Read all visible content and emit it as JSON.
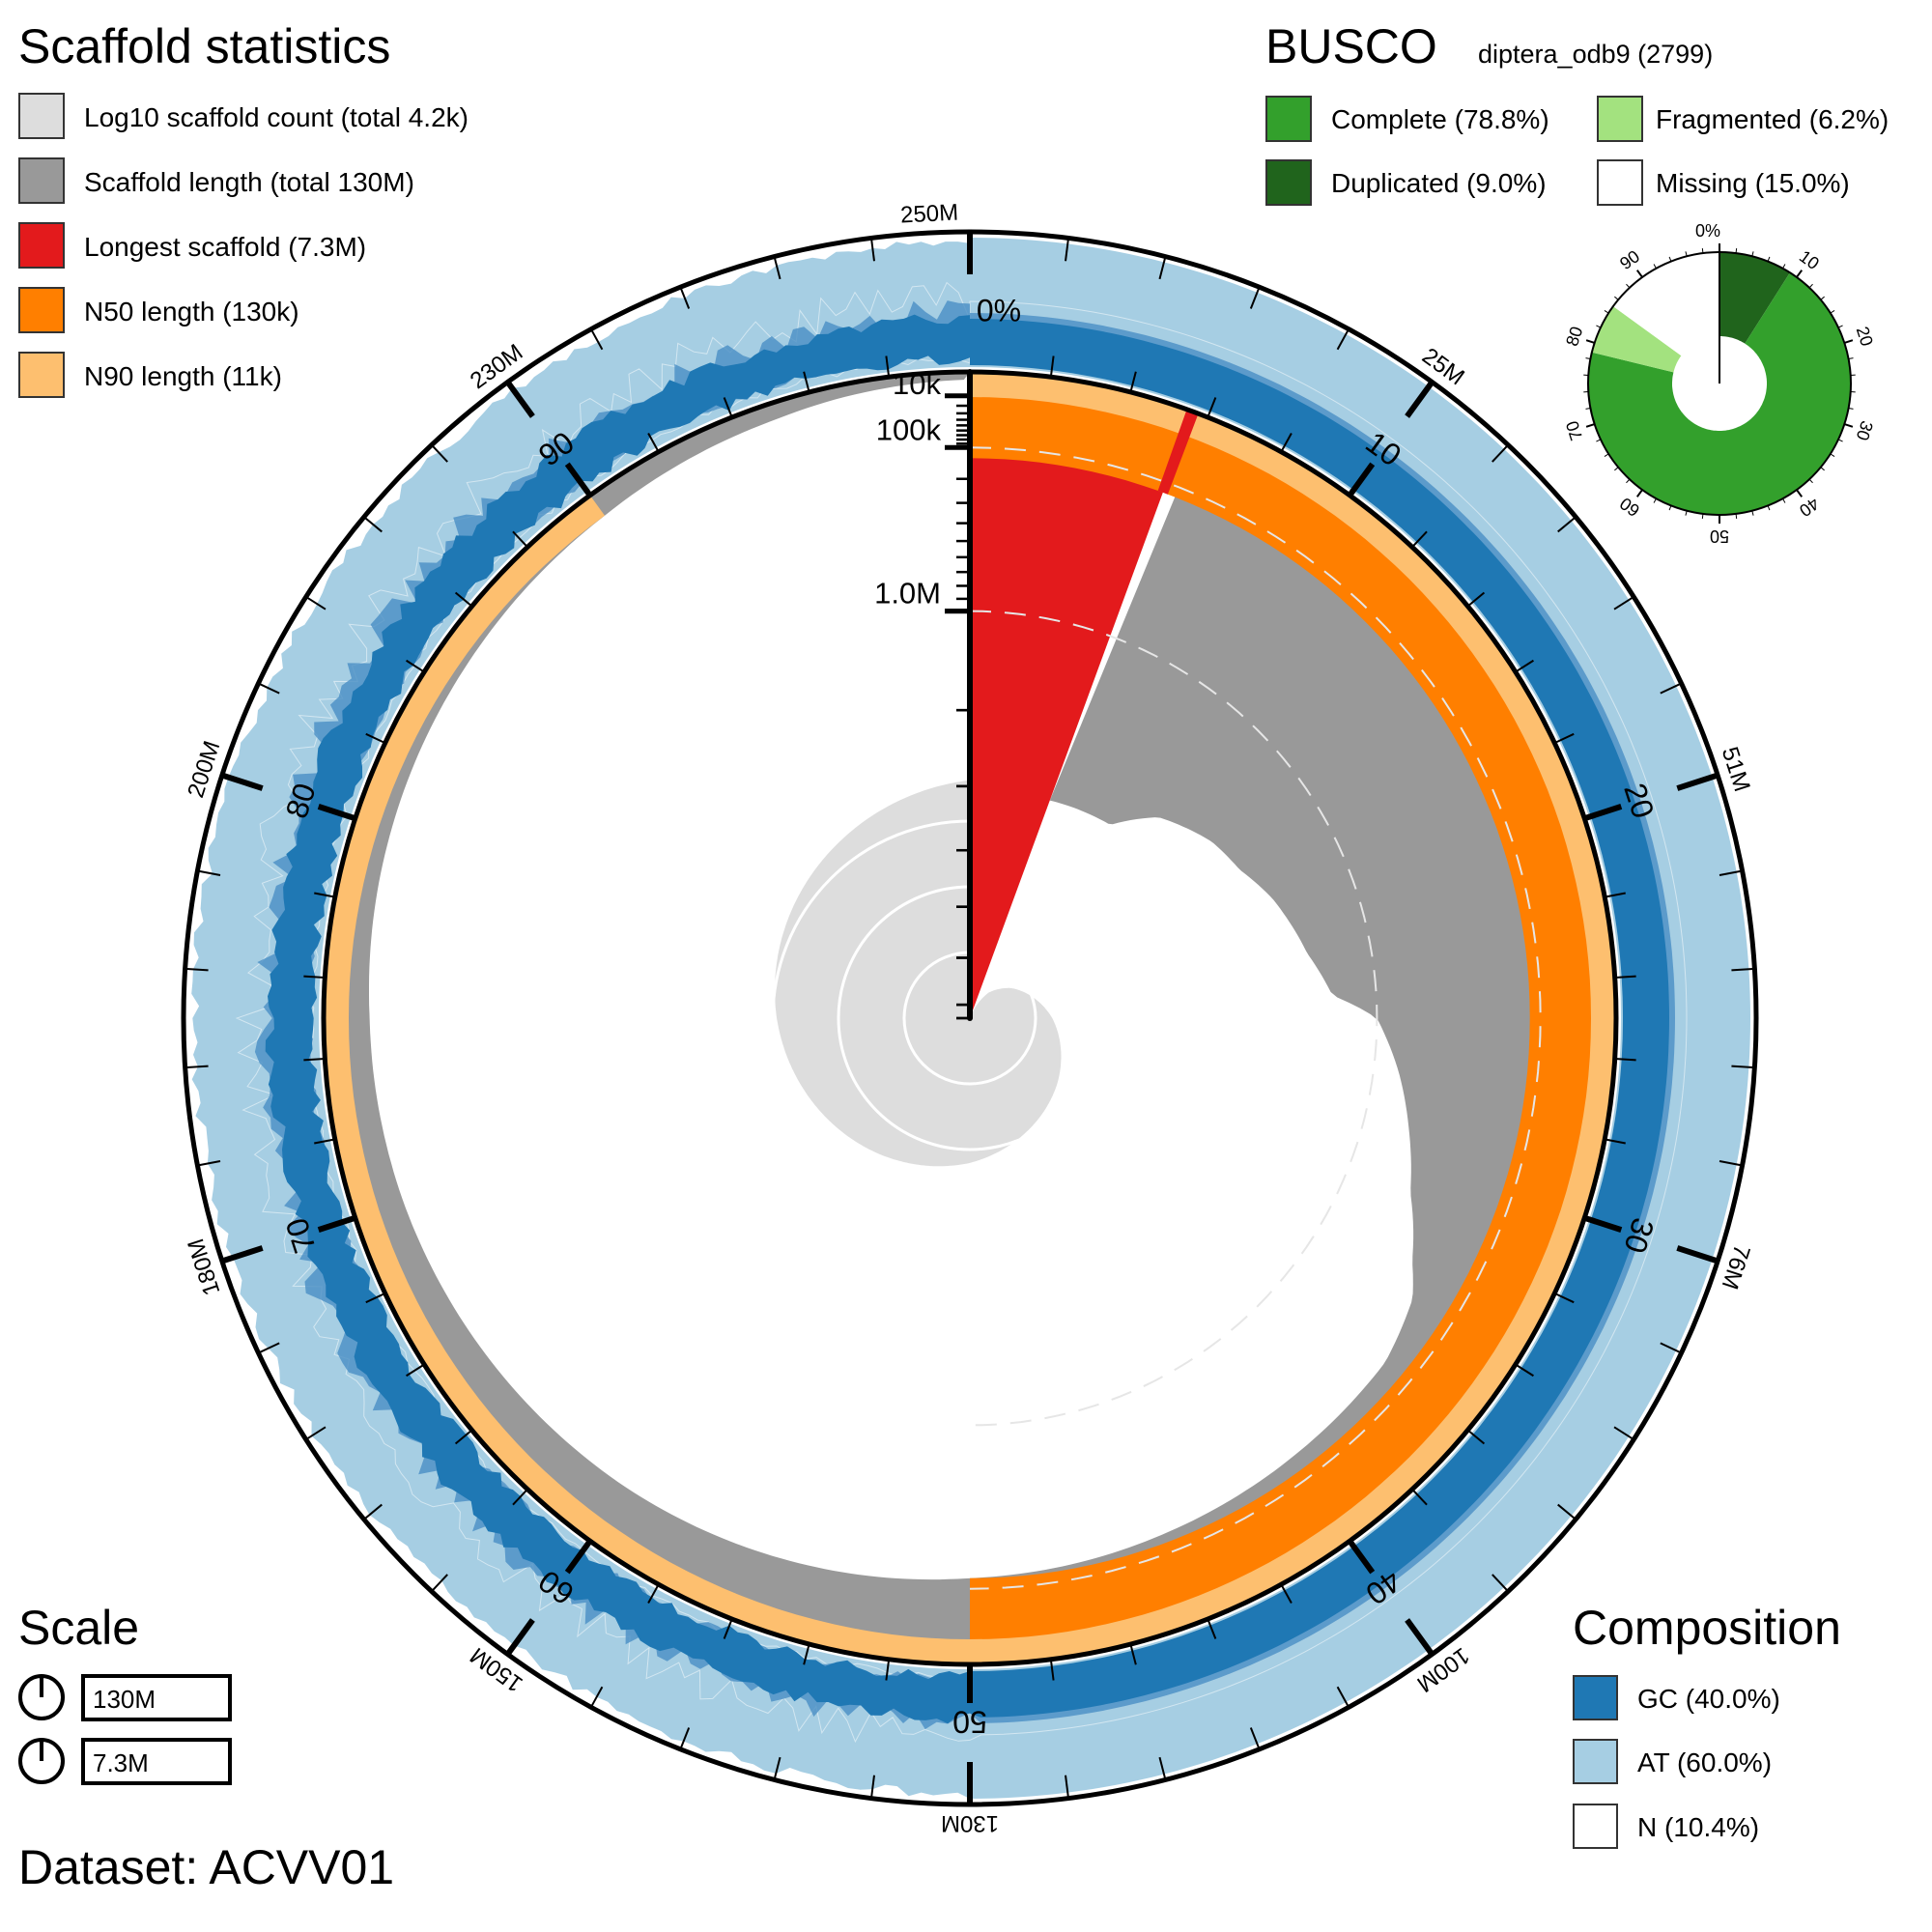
{
  "scaffold_stats": {
    "title": "Scaffold statistics",
    "items": [
      {
        "label": "Log10 scaffold count (total 4.2k)",
        "color": "#dddddd"
      },
      {
        "label": "Scaffold length (total 130M)",
        "color": "#999999"
      },
      {
        "label": "Longest scaffold (7.3M)",
        "color": "#e31a1c"
      },
      {
        "label": "N50 length (130k)",
        "color": "#ff7f00"
      },
      {
        "label": "N90 length (11k)",
        "color": "#fdbf6f"
      }
    ]
  },
  "busco": {
    "title": "BUSCO",
    "lineage": "diptera_odb9 (2799)",
    "items": [
      {
        "label": "Complete (78.8%)",
        "color": "#33a02c"
      },
      {
        "label": "Fragmented (6.2%)",
        "color": "#a3e27f"
      },
      {
        "label": "Duplicated (9.0%)",
        "color": "#20641c"
      },
      {
        "label": "Missing (15.0%)",
        "color": "#ffffff"
      }
    ],
    "tick_labels": [
      "0%",
      "10",
      "20",
      "30",
      "40",
      "50",
      "60",
      "70",
      "80",
      "90"
    ]
  },
  "scale": {
    "title": "Scale",
    "values": [
      "130M",
      "7.3M"
    ]
  },
  "dataset": "Dataset: ACVV01",
  "composition": {
    "title": "Composition",
    "items": [
      {
        "label": "GC (40.0%)",
        "color": "#1f78b4"
      },
      {
        "label": "AT (60.0%)",
        "color": "#a6cee3"
      },
      {
        "label": "N (10.4%)",
        "color": "#ffffff"
      }
    ]
  },
  "chart_data": {
    "type": "area",
    "layout": "polar snail plot",
    "total_length": 130000000,
    "scaffold_count": 4200,
    "longest_scaffold": 7300000,
    "n50": 130000,
    "n90": 11000,
    "longest_scaffold_percent": 5.6,
    "length_profile": [
      [
        5.6,
        3000000
      ],
      [
        10,
        2900000
      ],
      [
        12,
        2400000
      ],
      [
        15,
        2100000
      ],
      [
        17,
        2000000
      ],
      [
        19,
        1800000
      ],
      [
        22,
        1600000
      ],
      [
        24,
        1400000
      ],
      [
        25,
        1000000
      ],
      [
        27,
        800000
      ],
      [
        29,
        650000
      ],
      [
        31,
        520000
      ],
      [
        33,
        350000
      ],
      [
        34,
        260000
      ],
      [
        36,
        200000
      ],
      [
        40,
        180000
      ],
      [
        44,
        160000
      ],
      [
        50,
        130000
      ],
      [
        60,
        73000
      ],
      [
        70,
        45000
      ],
      [
        75,
        37000
      ],
      [
        80,
        25000
      ],
      [
        85,
        17000
      ],
      [
        90,
        11000
      ],
      [
        95,
        5000
      ],
      [
        100,
        1000
      ]
    ],
    "count_profile": [
      [
        5.6,
        1
      ],
      [
        10,
        3
      ],
      [
        15,
        6
      ],
      [
        25,
        18
      ],
      [
        35,
        45
      ],
      [
        50,
        160
      ],
      [
        60,
        320
      ],
      [
        75,
        870
      ],
      [
        90,
        2200
      ],
      [
        100,
        4200
      ]
    ],
    "radial_tick_labels": [
      {
        "label": "10k",
        "value": 10000
      },
      {
        "label": "100k",
        "value": 100000
      },
      {
        "label": "1.0M",
        "value": 1000000
      }
    ],
    "percent_tick_labels": [
      "0%",
      "10",
      "20",
      "30",
      "40",
      "50",
      "60",
      "70",
      "80",
      "90"
    ],
    "outer_tick_labels": [
      "250M",
      "25M",
      "51M",
      "76M",
      "100M",
      "130M",
      "150M",
      "180M",
      "200M",
      "230M"
    ],
    "composition": {
      "gc_percent": 40.0,
      "at_percent": 60.0,
      "n_percent": 10.4
    },
    "busco": {
      "complete": 78.8,
      "duplicated": 9.0,
      "fragmented": 6.2,
      "missing": 15.0,
      "total": 2799
    }
  }
}
